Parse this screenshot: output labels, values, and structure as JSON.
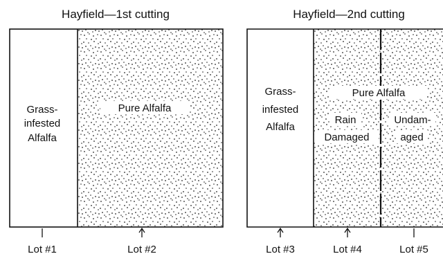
{
  "panels": [
    {
      "title": "Hayfield—1st cutting",
      "regions": [
        {
          "label_lines": [
            "Grass-",
            "infested",
            "Alfalfa"
          ],
          "stippled": false
        },
        {
          "label_lines": [
            "Pure Alfalfa"
          ],
          "stippled": true
        }
      ],
      "lots": [
        "Lot #1",
        "Lot #2"
      ]
    },
    {
      "title": "Hayfield—2nd cutting",
      "regions": [
        {
          "label_lines": [
            "Grass-",
            "infested",
            "Alfalfa"
          ],
          "stippled": false
        },
        {
          "label_lines": [
            "Rain",
            "Damaged"
          ],
          "stippled": true
        },
        {
          "label_lines": [
            "Undam-",
            "aged"
          ],
          "stippled": true
        }
      ],
      "spanning_label": "Pure Alfalfa",
      "lots": [
        "Lot #3",
        "Lot #4",
        "Lot #5"
      ]
    }
  ]
}
